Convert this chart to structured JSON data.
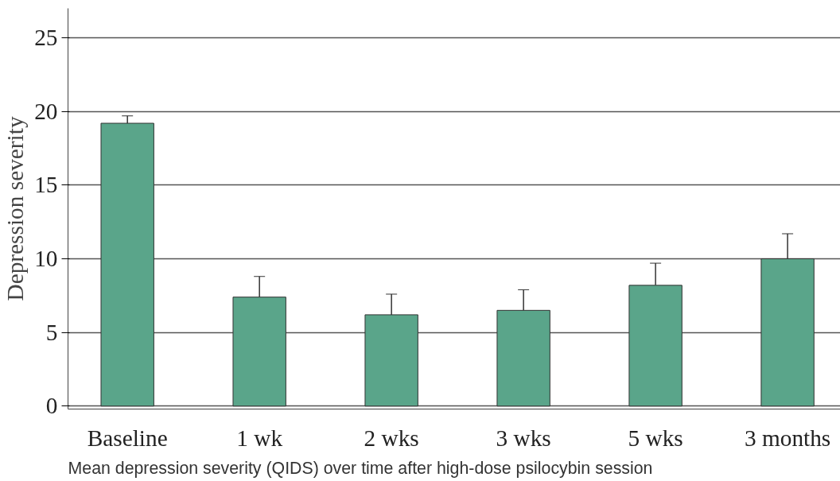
{
  "chart_data": {
    "type": "bar",
    "ylabel": "Depression severity",
    "categories": [
      "Baseline",
      "1 wk",
      "2 wks",
      "3 wks",
      "5 wks",
      "3 months"
    ],
    "values": [
      19.2,
      7.4,
      6.2,
      6.5,
      8.2,
      10.0
    ],
    "errors": [
      [
        19.2,
        19.7
      ],
      [
        7.4,
        8.8
      ],
      [
        6.2,
        7.6
      ],
      [
        6.5,
        7.9
      ],
      [
        8.2,
        9.7
      ],
      [
        10.0,
        11.7
      ]
    ],
    "color": "#5aa58a",
    "ylim": [
      -0.2,
      27
    ],
    "yticks": [
      0,
      5,
      10,
      15,
      20,
      25
    ],
    "grid": "y",
    "annotations": [
      "Mean depression severity (QIDS) over time after high-dose psilocybin session"
    ]
  }
}
